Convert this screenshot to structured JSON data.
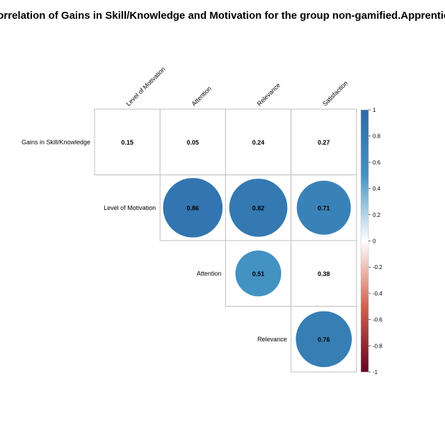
{
  "chart_data": {
    "type": "heatmap",
    "title": "Correlation of Gains in Skill/Knowledge and Motivation for the group non-gamified.Apprentice",
    "row_labels": [
      "Gains in Skill/Knowledge",
      "Level of Motivation",
      "Attention",
      "Relevance"
    ],
    "col_labels": [
      "Level of Motivation",
      "Attention",
      "Relevance",
      "Satisfaction"
    ],
    "cells": [
      {
        "row": "Gains in Skill/Knowledge",
        "col": "Level of Motivation",
        "value": 0.15,
        "circle": false
      },
      {
        "row": "Gains in Skill/Knowledge",
        "col": "Attention",
        "value": 0.05,
        "circle": false
      },
      {
        "row": "Gains in Skill/Knowledge",
        "col": "Relevance",
        "value": 0.24,
        "circle": false
      },
      {
        "row": "Gains in Skill/Knowledge",
        "col": "Satisfaction",
        "value": 0.27,
        "circle": false
      },
      {
        "row": "Level of Motivation",
        "col": "Attention",
        "value": 0.86,
        "circle": true
      },
      {
        "row": "Level of Motivation",
        "col": "Relevance",
        "value": 0.82,
        "circle": true
      },
      {
        "row": "Level of Motivation",
        "col": "Satisfaction",
        "value": 0.71,
        "circle": true
      },
      {
        "row": "Attention",
        "col": "Relevance",
        "value": 0.51,
        "circle": true
      },
      {
        "row": "Attention",
        "col": "Satisfaction",
        "value": 0.38,
        "circle": false
      },
      {
        "row": "Relevance",
        "col": "Satisfaction",
        "value": 0.76,
        "circle": true
      }
    ],
    "colorbar": {
      "range": [
        -1,
        1
      ],
      "ticks": [
        "1",
        "0.8",
        "0.6",
        "0.4",
        "0.2",
        "0",
        "-0.2",
        "-0.4",
        "-0.6",
        "-0.8",
        "-1"
      ],
      "colors": {
        "negative": "#67001f",
        "mid_negative": "#d6604d",
        "neutral": "#ffffff",
        "mid_positive": "#4393c3",
        "positive": "#2c6aa8"
      }
    },
    "grid": true,
    "legend": "right"
  }
}
